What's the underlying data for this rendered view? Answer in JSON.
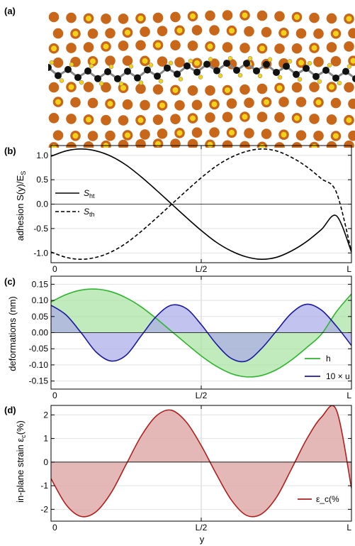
{
  "panels": {
    "a": {
      "label": "(a)"
    },
    "b": {
      "label": "(b)"
    },
    "c": {
      "label": "(c)"
    },
    "d": {
      "label": "(d)"
    }
  },
  "colors": {
    "orange_atom": "#c8661a",
    "yellow_atom": "#f2d21b",
    "black_atom": "#111111",
    "bond": "#888888",
    "green_line": "#2db52d",
    "green_fill": "#a6e3a0",
    "blue_line": "#1a1a9e",
    "blue_fill": "#a9a9e8",
    "overlap_fill": "#4f7f8f",
    "red_line": "#b01e1e",
    "red_fill": "#dea6a6"
  },
  "chart_data": [
    {
      "panel": "b",
      "type": "line",
      "ylabel": "adhesion S(y)/E_S",
      "xticks": [
        "0",
        "L/2",
        "L"
      ],
      "yticks": [
        "1.0",
        "0.5",
        "0.0",
        "-0.5",
        "-1.0"
      ],
      "xlim": [
        0,
        1
      ],
      "ylim": [
        -1.2,
        1.2
      ],
      "grid": true,
      "legend_position": "left",
      "series": [
        {
          "name": "S_ht",
          "label_main": "S",
          "label_sub": "ht",
          "style": "solid",
          "x": [
            0,
            0.05,
            0.1,
            0.15,
            0.2,
            0.25,
            0.3,
            0.35,
            0.4,
            0.45,
            0.5,
            0.55,
            0.6,
            0.65,
            0.7,
            0.75,
            0.8,
            0.85,
            0.9,
            0.95,
            1.0
          ],
          "y": [
            0.98,
            1.09,
            1.13,
            1.09,
            0.98,
            0.8,
            0.56,
            0.29,
            0.01,
            -0.27,
            -0.54,
            -0.78,
            -0.96,
            -1.08,
            -1.13,
            -1.09,
            -0.96,
            -0.77,
            -0.52,
            -0.24,
            -0.98
          ]
        },
        {
          "name": "S_th",
          "label_main": "S",
          "label_sub": "th",
          "style": "dashed",
          "x": [
            0,
            0.05,
            0.1,
            0.15,
            0.2,
            0.25,
            0.3,
            0.35,
            0.4,
            0.45,
            0.5,
            0.55,
            0.6,
            0.65,
            0.7,
            0.75,
            0.8,
            0.85,
            0.9,
            0.95,
            1.0
          ],
          "y": [
            -0.98,
            -1.09,
            -1.13,
            -1.09,
            -0.98,
            -0.8,
            -0.56,
            -0.29,
            -0.01,
            0.27,
            0.54,
            0.78,
            0.96,
            1.08,
            1.13,
            1.09,
            0.96,
            0.77,
            0.52,
            0.24,
            -0.98
          ]
        }
      ]
    },
    {
      "panel": "c",
      "type": "area",
      "ylabel": "deformations (nm)",
      "xticks": [
        "0",
        "L/2",
        "L"
      ],
      "yticks": [
        "0.15",
        "0.10",
        "0.05",
        "0.00",
        "-0.05",
        "-0.10",
        "-0.15"
      ],
      "xlim": [
        0,
        1
      ],
      "ylim": [
        -0.175,
        0.175
      ],
      "grid": true,
      "legend_position": "bottom-right",
      "series": [
        {
          "name": "h",
          "label": "h",
          "x": [
            0,
            0.05,
            0.1,
            0.15,
            0.2,
            0.25,
            0.3,
            0.35,
            0.4,
            0.45,
            0.5,
            0.55,
            0.6,
            0.65,
            0.7,
            0.75,
            0.8,
            0.85,
            0.9,
            0.95,
            1.0
          ],
          "y": [
            0.095,
            0.118,
            0.132,
            0.135,
            0.127,
            0.108,
            0.08,
            0.044,
            0.005,
            -0.034,
            -0.072,
            -0.104,
            -0.127,
            -0.137,
            -0.133,
            -0.115,
            -0.085,
            -0.047,
            -0.005,
            0.065,
            0.12
          ]
        },
        {
          "name": "10 × u",
          "label": "10 × u",
          "x": [
            0,
            0.05,
            0.1,
            0.15,
            0.2,
            0.25,
            0.3,
            0.35,
            0.4,
            0.45,
            0.5,
            0.55,
            0.6,
            0.65,
            0.7,
            0.75,
            0.8,
            0.85,
            0.9,
            0.95,
            1.0
          ],
          "y": [
            0.085,
            0.055,
            0.0,
            -0.06,
            -0.088,
            -0.07,
            -0.01,
            0.05,
            0.085,
            0.075,
            0.025,
            -0.035,
            -0.08,
            -0.088,
            -0.05,
            0.005,
            0.06,
            0.088,
            0.07,
            0.02,
            -0.04
          ]
        }
      ]
    },
    {
      "panel": "d",
      "type": "area",
      "ylabel": "in-plane strain ε_c(%)",
      "xlabel": "y",
      "xticks": [
        "0",
        "L/2",
        "L"
      ],
      "yticks": [
        "2",
        "1",
        "0",
        "-1",
        "-2"
      ],
      "xlim": [
        0,
        1
      ],
      "ylim": [
        -2.5,
        2.4
      ],
      "grid": true,
      "legend_position": "bottom-right",
      "series": [
        {
          "name": "ε_c(%)",
          "label": "ε_c(%",
          "x": [
            0,
            0.05,
            0.1,
            0.15,
            0.2,
            0.25,
            0.3,
            0.35,
            0.4,
            0.45,
            0.5,
            0.55,
            0.6,
            0.65,
            0.7,
            0.75,
            0.8,
            0.85,
            0.9,
            0.95,
            1.0
          ],
          "y": [
            -0.7,
            -1.8,
            -2.3,
            -2.1,
            -1.3,
            -0.1,
            1.1,
            1.95,
            2.2,
            1.7,
            0.7,
            -0.5,
            -1.6,
            -2.25,
            -2.2,
            -1.5,
            -0.3,
            0.95,
            1.9,
            2.2,
            -1.1
          ]
        }
      ]
    }
  ],
  "axis_labels": {
    "b_y": "adhesion S(y)/E",
    "b_y_sub": "S",
    "c_y": "deformations (nm)",
    "d_y": "in-plane strain ε",
    "d_y_sub": "c",
    "d_y_tail": "(%)",
    "d_x": "y"
  }
}
